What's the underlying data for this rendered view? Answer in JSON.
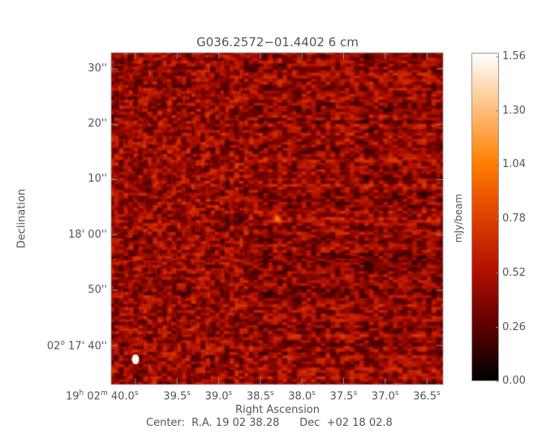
{
  "chart_data": {
    "type": "heatmap",
    "title": "G036.2572−01.4402 6 cm",
    "xlabel": "Right Ascension",
    "ylabel": "Declination",
    "x_ticks": [
      {
        "h": "19",
        "m": "02",
        "s": "40.0"
      },
      {
        "s": "39.5"
      },
      {
        "s": "39.0"
      },
      {
        "s": "38.5"
      },
      {
        "s": "38.0"
      },
      {
        "s": "37.5"
      },
      {
        "s": "37.0"
      },
      {
        "s": "36.5"
      }
    ],
    "y_ticks": [
      "30''",
      "20''",
      "10''",
      "18' 00''",
      "50''",
      "17' 40''"
    ],
    "y_tick_deg": "02",
    "colorbar": {
      "label": "mJy/beam",
      "ticks": [
        "1.56",
        "1.30",
        "1.04",
        "0.78",
        "0.52",
        "0.26",
        "0.00"
      ],
      "range": [
        0.0,
        1.56
      ],
      "colormap": [
        "#000000",
        "#600000",
        "#b01000",
        "#e04000",
        "#ff8000",
        "#ffc080",
        "#ffffff"
      ]
    },
    "footer": "Center:  R.A. 19 02 38.28      Dec  +02 18 02.8",
    "features": [
      "compact bright source near center",
      "beam ellipse at lower-left"
    ]
  }
}
